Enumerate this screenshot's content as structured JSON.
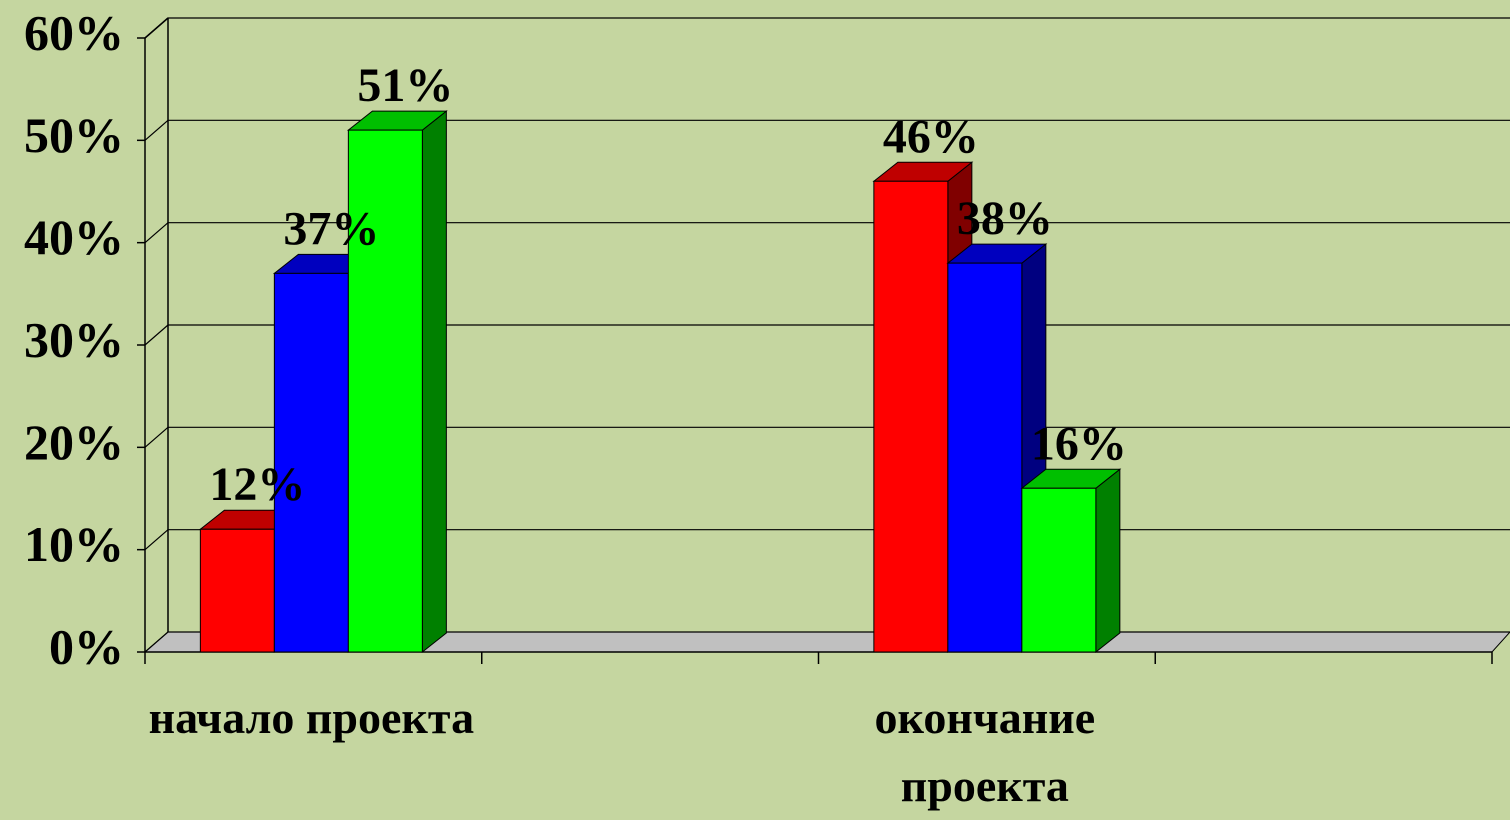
{
  "chart_data": {
    "type": "bar3d",
    "categories": [
      "начало проекта",
      "окончание проекта"
    ],
    "series": [
      {
        "color": "#ff0000",
        "values": [
          12,
          46
        ],
        "value_labels": [
          "12%",
          "46%"
        ]
      },
      {
        "color": "#0000ff",
        "values": [
          37,
          38
        ],
        "value_labels": [
          "37%",
          "38%"
        ]
      },
      {
        "color": "#00ff00",
        "values": [
          51,
          16
        ],
        "value_labels": [
          "51%",
          "16%"
        ]
      }
    ],
    "ylim": [
      0,
      60
    ],
    "yticks": [
      {
        "value": 0,
        "label": "0%"
      },
      {
        "value": 10,
        "label": "10%"
      },
      {
        "value": 20,
        "label": "20%"
      },
      {
        "value": 30,
        "label": "30%"
      },
      {
        "value": 40,
        "label": "40%"
      },
      {
        "value": 50,
        "label": "50%"
      },
      {
        "value": 60,
        "label": "60%"
      }
    ],
    "grid": true
  }
}
